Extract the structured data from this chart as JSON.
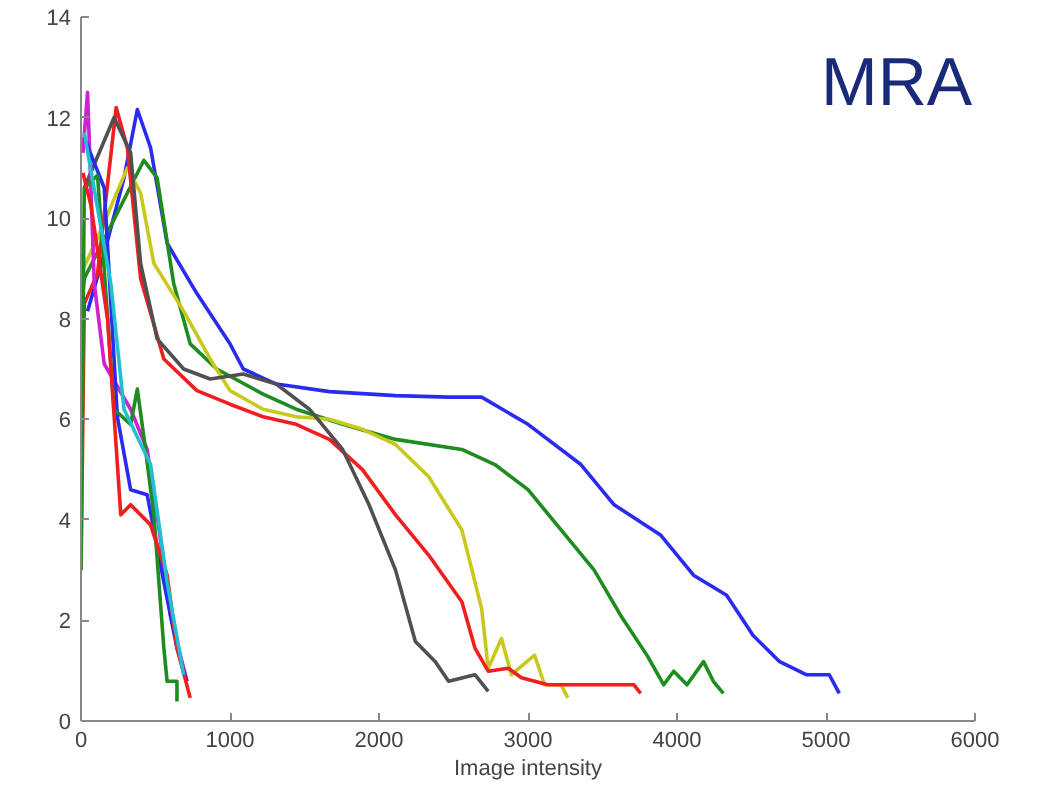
{
  "chart_data": {
    "type": "line",
    "xlabel": "Image intensity",
    "annotations": [
      "MRA"
    ],
    "xlim": [
      0,
      6000
    ],
    "ylim": [
      0,
      14
    ],
    "xticks": [
      0,
      1000,
      2000,
      3000,
      4000,
      5000,
      6000
    ],
    "yticks": [
      0,
      2,
      4,
      6,
      8,
      10,
      12,
      14
    ],
    "grid": false,
    "marker": "none",
    "line_style": "solid",
    "series": [
      {
        "color": "#2a2af0",
        "x": [
          44,
          156,
          289,
          378,
          467,
          578,
          778,
          1000,
          1089,
          1311,
          1667,
          2111,
          2467,
          2689,
          3000,
          3355,
          3578,
          3889,
          4111,
          4333,
          4511,
          4689,
          4867,
          5022,
          5089
        ],
        "values": [
          8.15,
          9.3,
          10.8,
          12.16,
          11.4,
          9.5,
          8.5,
          7.5,
          7.0,
          6.7,
          6.55,
          6.47,
          6.44,
          6.44,
          5.9,
          5.1,
          4.3,
          3.7,
          2.9,
          2.5,
          1.7,
          1.18,
          0.92,
          0.92,
          0.55
        ]
      },
      {
        "color": "#1f8c1f",
        "x": [
          0,
          22,
          422,
          511,
          622,
          733,
          911,
          1222,
          1444,
          1756,
          2111,
          2556,
          2778,
          3000,
          3222,
          3444,
          3622,
          3800,
          3911,
          3978,
          4067,
          4178,
          4244,
          4311
        ],
        "values": [
          8.1,
          8.8,
          11.15,
          10.8,
          8.7,
          7.5,
          7.0,
          6.5,
          6.2,
          5.9,
          5.6,
          5.4,
          5.1,
          4.6,
          3.8,
          3.0,
          2.1,
          1.3,
          0.72,
          0.99,
          0.72,
          1.18,
          0.79,
          0.55
        ]
      },
      {
        "color": "#c8c81e",
        "x": [
          0,
          111,
          311,
          400,
          489,
          689,
          867,
          1000,
          1222,
          1444,
          1667,
          1889,
          2111,
          2333,
          2556,
          2689,
          2733,
          2822,
          2889,
          3044,
          3111,
          3222,
          3267
        ],
        "values": [
          8.9,
          9.6,
          11.0,
          10.5,
          9.1,
          8.15,
          7.2,
          6.57,
          6.2,
          6.05,
          6.0,
          5.8,
          5.5,
          4.86,
          3.8,
          2.23,
          1.05,
          1.64,
          0.92,
          1.31,
          0.72,
          0.72,
          0.46
        ]
      },
      {
        "color": "#f01e1e",
        "x": [
          0,
          22,
          111,
          236,
          311,
          400,
          556,
          778,
          1000,
          1222,
          1444,
          1667,
          1889,
          2111,
          2333,
          2556,
          2644,
          2733,
          2867,
          2956,
          3133,
          3444,
          3711,
          3756
        ],
        "values": [
          3.0,
          8.3,
          8.9,
          12.2,
          11.4,
          8.8,
          7.2,
          6.57,
          6.3,
          6.05,
          5.9,
          5.6,
          5.0,
          4.1,
          3.3,
          2.37,
          1.45,
          0.99,
          1.05,
          0.86,
          0.72,
          0.72,
          0.72,
          0.55
        ]
      },
      {
        "color": "#505050",
        "x": [
          22,
          222,
          333,
          400,
          511,
          689,
          867,
          1089,
          1311,
          1533,
          1756,
          1933,
          2111,
          2244,
          2378,
          2467,
          2644,
          2733
        ],
        "values": [
          10.6,
          12.0,
          11.3,
          9.1,
          7.6,
          7.0,
          6.8,
          6.9,
          6.7,
          6.2,
          5.4,
          4.3,
          3.0,
          1.58,
          1.18,
          0.79,
          0.92,
          0.59
        ]
      },
      {
        "color": "#d020d0",
        "x": [
          13,
          44,
          89,
          156,
          333,
          444,
          511,
          600,
          711
        ],
        "values": [
          11.3,
          12.5,
          8.7,
          7.1,
          6.2,
          5.4,
          4.1,
          2.1,
          0.79
        ]
      },
      {
        "color": "#2a2af0",
        "x": [
          22,
          156,
          244,
          333,
          444,
          556,
          644,
          711
        ],
        "values": [
          11.6,
          10.6,
          6.05,
          4.6,
          4.5,
          2.76,
          1.45,
          0.79
        ]
      },
      {
        "color": "#1f8c1f",
        "x": [
          0,
          22,
          111,
          222,
          333,
          378,
          422,
          489,
          556,
          578,
          644,
          644
        ],
        "values": [
          3.0,
          10.6,
          10.85,
          6.2,
          5.9,
          6.6,
          5.65,
          4.1,
          1.45,
          0.79,
          0.79,
          0.39
        ]
      },
      {
        "color": "#f01e1e",
        "x": [
          13,
          67,
          178,
          267,
          333,
          467,
          578,
          644,
          733
        ],
        "values": [
          10.9,
          10.25,
          8.0,
          4.1,
          4.3,
          3.9,
          2.9,
          1.45,
          0.46
        ]
      },
      {
        "color": "#20c0d0",
        "x": [
          22,
          200,
          289,
          467,
          578,
          689
        ],
        "values": [
          11.7,
          8.7,
          6.2,
          5.1,
          2.76,
          0.92
        ]
      }
    ]
  }
}
